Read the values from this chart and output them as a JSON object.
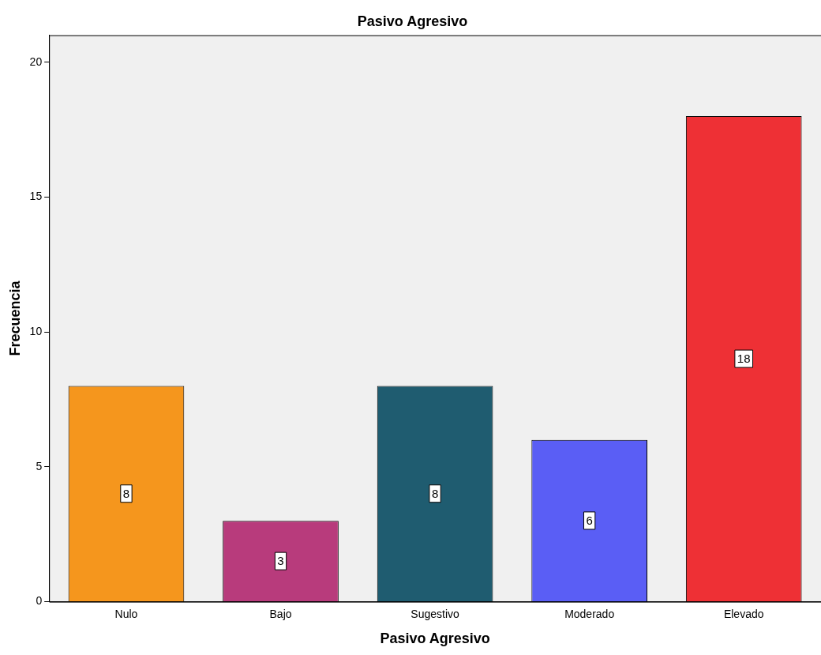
{
  "chart_data": {
    "type": "bar",
    "title": "Pasivo Agresivo",
    "xlabel": "Pasivo Agresivo",
    "ylabel": "Frecuencia",
    "categories": [
      "Nulo",
      "Bajo",
      "Sugestivo",
      "Moderado",
      "Elevado"
    ],
    "values": [
      8,
      3,
      8,
      6,
      18
    ],
    "colors": [
      "#f5961d",
      "#b83b7c",
      "#1f5c70",
      "#5a5ef5",
      "#ee3035"
    ],
    "ylim": [
      0,
      21
    ],
    "yticks": [
      0,
      5,
      10,
      15,
      20
    ],
    "grid": false,
    "legend": false,
    "data_labels": true
  }
}
